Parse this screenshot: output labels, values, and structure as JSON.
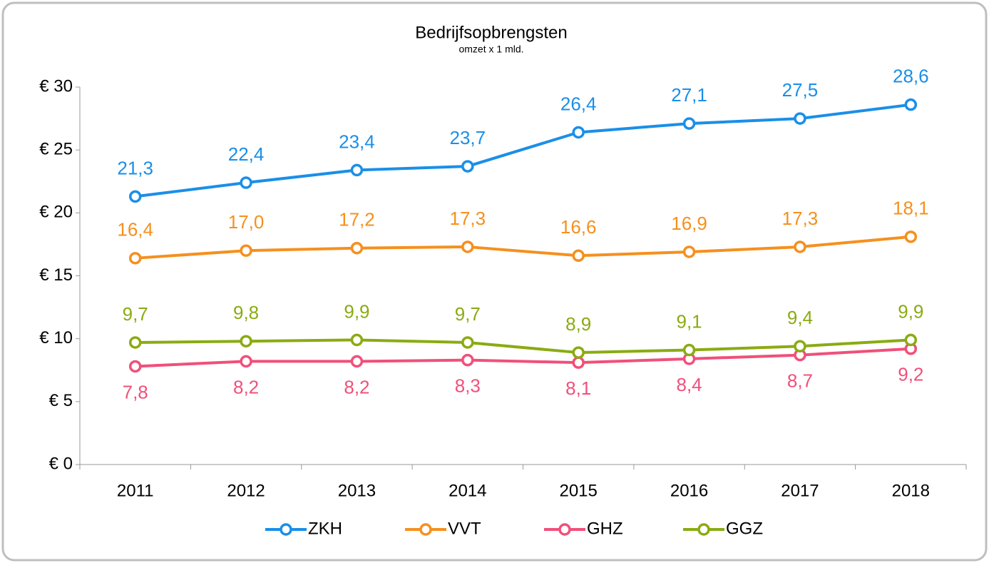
{
  "chart_data": {
    "type": "line",
    "title": "Bedrijfsopbrengsten",
    "subtitle": "omzet  x 1 mld.",
    "categories": [
      "2011",
      "2012",
      "2013",
      "2014",
      "2015",
      "2016",
      "2017",
      "2018"
    ],
    "series": [
      {
        "name": "ZKH",
        "color": "#1a8fe8",
        "label_position": "above",
        "values": [
          21.3,
          22.4,
          23.4,
          23.7,
          26.4,
          27.1,
          27.5,
          28.6
        ],
        "value_labels": [
          "21,3",
          "22,4",
          "23,4",
          "23,7",
          "26,4",
          "27,1",
          "27,5",
          "28,6"
        ]
      },
      {
        "name": "VVT",
        "color": "#f5901e",
        "label_position": "above",
        "values": [
          16.4,
          17.0,
          17.2,
          17.3,
          16.6,
          16.9,
          17.3,
          18.1
        ],
        "value_labels": [
          "16,4",
          "17,0",
          "17,2",
          "17,3",
          "16,6",
          "16,9",
          "17,3",
          "18,1"
        ]
      },
      {
        "name": "GHZ",
        "color": "#f0507a",
        "label_position": "below",
        "values": [
          7.8,
          8.2,
          8.2,
          8.3,
          8.1,
          8.4,
          8.7,
          9.2
        ],
        "value_labels": [
          "7,8",
          "8,2",
          "8,2",
          "8,3",
          "8,1",
          "8,4",
          "8,7",
          "9,2"
        ]
      },
      {
        "name": "GGZ",
        "color": "#8aab12",
        "label_position": "above",
        "values": [
          9.7,
          9.8,
          9.9,
          9.7,
          8.9,
          9.1,
          9.4,
          9.9
        ],
        "value_labels": [
          "9,7",
          "9,8",
          "9,9",
          "9,7",
          "8,9",
          "9,1",
          "9,4",
          "9,9"
        ]
      }
    ],
    "ylim": [
      0,
      30
    ],
    "yticks": [
      {
        "value": 0,
        "label": "€ 0"
      },
      {
        "value": 5,
        "label": "€ 5"
      },
      {
        "value": 10,
        "label": "€ 10"
      },
      {
        "value": 15,
        "label": "€ 15"
      },
      {
        "value": 20,
        "label": "€ 20"
      },
      {
        "value": 25,
        "label": "€ 25"
      },
      {
        "value": 30,
        "label": "€ 30"
      }
    ],
    "grid": false,
    "legend": "bottom"
  }
}
